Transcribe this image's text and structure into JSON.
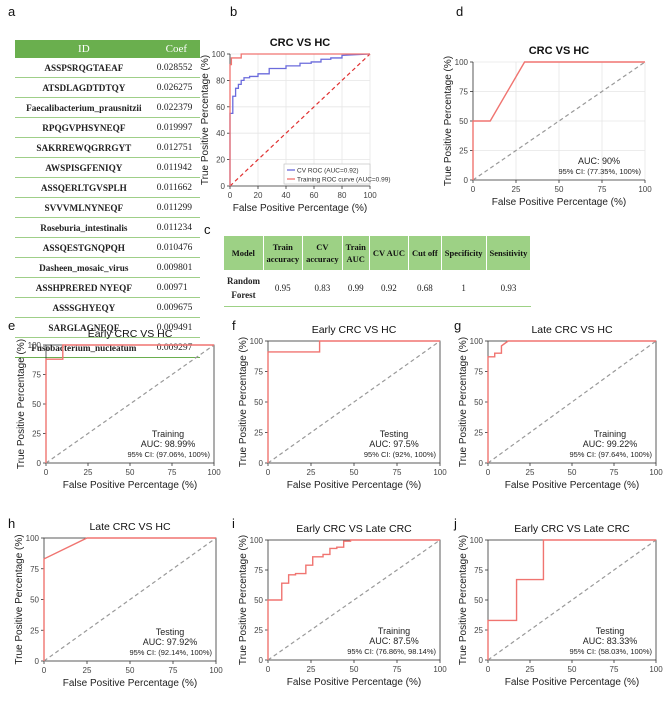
{
  "labels": [
    "a",
    "b",
    "c",
    "d",
    "e",
    "f",
    "g",
    "h",
    "i",
    "j"
  ],
  "table_a": {
    "headers": [
      "ID",
      "Coef"
    ],
    "rows": [
      [
        "ASSPSRQGTAEAF",
        "0.028552"
      ],
      [
        "ATSDLAGDTDTQY",
        "0.026275"
      ],
      [
        "Faecalibacterium_prausnitzii",
        "0.022379"
      ],
      [
        "RPQGVPHSYNEQF",
        "0.019997"
      ],
      [
        "SAKRREWQGRRGYT",
        "0.012751"
      ],
      [
        "AWSPISGFENIQY",
        "0.011942"
      ],
      [
        "ASSQERLTGVSPLH",
        "0.011662"
      ],
      [
        "SVVVMLNYNEQF",
        "0.011299"
      ],
      [
        "Roseburia_intestinalis",
        "0.011234"
      ],
      [
        "ASSQESTGNQPQH",
        "0.010476"
      ],
      [
        "Dasheen_mosaic_virus",
        "0.009801"
      ],
      [
        "ASSHPRERED NYEQF",
        "0.00971"
      ],
      [
        "ASSSGHYEQY",
        "0.009675"
      ],
      [
        "SARGLAGNEQF",
        "0.009491"
      ],
      [
        "Fusobacterium_nucleatum",
        "0.009297"
      ]
    ]
  },
  "table_c": {
    "headers": [
      [
        "Model"
      ],
      [
        "Train",
        "accuracy"
      ],
      [
        "CV",
        "accuracy"
      ],
      [
        "Train",
        "AUC"
      ],
      [
        "CV AUC"
      ],
      [
        "Cut off"
      ],
      [
        "Specificity"
      ],
      [
        "Sensitivity"
      ]
    ],
    "row": {
      "model": [
        "Random",
        "Forest"
      ],
      "values": [
        "0.95",
        "0.83",
        "0.99",
        "0.92",
        "0.68",
        "1",
        "0.93"
      ]
    }
  },
  "axes": {
    "xlabel": "False Positive Percentage (%)",
    "ylabel": "True Positive Percentage (%)",
    "ticks": [
      "0",
      "25",
      "50",
      "75",
      "100"
    ],
    "ticks_b": [
      "0",
      "20",
      "40",
      "60",
      "80",
      "100"
    ]
  },
  "colors": {
    "roc": "#f07470",
    "cv": "#6b6bdc",
    "diag": "#999999",
    "diag_b": "#e03030",
    "table_head_a": "#6aaf4e",
    "table_head_c": "#9dd185"
  },
  "chart_data": [
    {
      "id": "b",
      "type": "line",
      "title": "CRC VS HC",
      "xlim": [
        0,
        100
      ],
      "ylim": [
        0,
        100
      ],
      "grid": true,
      "legend": {
        "position": "bottom-right",
        "entries": [
          "CV ROC (AUC=0.92)",
          "Training ROC curve (AUC=0.99)"
        ]
      },
      "series": [
        {
          "name": "CV ROC (AUC=0.92)",
          "x": [
            0,
            0,
            2,
            2,
            4,
            4,
            6,
            6,
            8,
            8,
            10,
            10,
            14,
            14,
            20,
            20,
            28,
            28,
            40,
            40,
            50,
            50,
            58,
            58,
            65,
            65,
            72,
            72,
            80,
            80,
            100
          ],
          "y": [
            0,
            55,
            55,
            68,
            68,
            74,
            74,
            77,
            77,
            80,
            80,
            82,
            82,
            83,
            83,
            85,
            85,
            89,
            89,
            91,
            91,
            93,
            93,
            94,
            94,
            96,
            96,
            97,
            97,
            99,
            100
          ]
        },
        {
          "name": "Training ROC curve (AUC=0.99)",
          "x": [
            0,
            0,
            1,
            1,
            8,
            8,
            100
          ],
          "y": [
            0,
            92,
            92,
            97,
            97,
            100,
            100
          ]
        }
      ],
      "diagonal": true
    },
    {
      "id": "d",
      "type": "line",
      "title": "CRC VS HC",
      "xlim": [
        0,
        100
      ],
      "ylim": [
        0,
        100
      ],
      "grid": true,
      "x": [
        0,
        0,
        10,
        10,
        30,
        100
      ],
      "y": [
        0,
        50,
        50,
        50,
        100,
        100
      ],
      "annotation": [
        "AUC: 90%",
        "95% CI: (77.35%, 100%)"
      ]
    },
    {
      "id": "e",
      "type": "line",
      "title": "Early CRC VS HC",
      "xlim": [
        0,
        100
      ],
      "ylim": [
        0,
        100
      ],
      "x": [
        0,
        0,
        10,
        10,
        100
      ],
      "y": [
        0,
        88,
        88,
        100,
        100
      ],
      "annotation": [
        "Training",
        "AUC: 98.99%",
        "95% CI: (97.06%, 100%)"
      ]
    },
    {
      "id": "f",
      "type": "line",
      "title": "Early CRC VS HC",
      "xlim": [
        0,
        100
      ],
      "ylim": [
        0,
        100
      ],
      "x": [
        0,
        0,
        30,
        30,
        100
      ],
      "y": [
        0,
        91,
        91,
        100,
        100
      ],
      "annotation": [
        "Testing",
        "AUC: 97.5%",
        "95% CI: (92%, 100%)"
      ]
    },
    {
      "id": "g",
      "type": "line",
      "title": "Late CRC VS HC",
      "xlim": [
        0,
        100
      ],
      "ylim": [
        0,
        100
      ],
      "x": [
        0,
        0,
        4,
        4,
        8,
        8,
        12,
        100
      ],
      "y": [
        0,
        87,
        87,
        90,
        90,
        96,
        100,
        100
      ],
      "annotation": [
        "Training",
        "AUC: 99.22%",
        "95% CI: (97.64%, 100%)"
      ]
    },
    {
      "id": "h",
      "type": "line",
      "title": "Late CRC VS HC",
      "xlim": [
        0,
        100
      ],
      "ylim": [
        0,
        100
      ],
      "x": [
        0,
        0,
        25,
        100
      ],
      "y": [
        0,
        83,
        100,
        100
      ],
      "annotation": [
        "Testing",
        "AUC: 97.92%",
        "95% CI: (92.14%, 100%)"
      ]
    },
    {
      "id": "i",
      "type": "line",
      "title": "Early CRC VS Late CRC",
      "xlim": [
        0,
        100
      ],
      "ylim": [
        0,
        100
      ],
      "x": [
        0,
        0,
        8,
        8,
        12,
        12,
        16,
        16,
        22,
        22,
        26,
        26,
        32,
        32,
        36,
        36,
        40,
        40,
        44,
        44,
        48,
        48,
        70,
        70,
        100
      ],
      "y": [
        0,
        50,
        50,
        64,
        64,
        71,
        71,
        72,
        72,
        79,
        79,
        86,
        86,
        88,
        88,
        93,
        93,
        94,
        94,
        99,
        99,
        100,
        100,
        100,
        100
      ],
      "annotation": [
        "Training",
        "AUC: 87.5%",
        "95% CI: (76.86%, 98.14%)"
      ]
    },
    {
      "id": "j",
      "type": "line",
      "title": "Early CRC VS Late CRC",
      "xlim": [
        0,
        100
      ],
      "ylim": [
        0,
        100
      ],
      "x": [
        0,
        0,
        17,
        17,
        33,
        33,
        100
      ],
      "y": [
        0,
        33,
        33,
        67,
        67,
        100,
        100
      ],
      "annotation": [
        "Testing",
        "AUC: 83.33%",
        "95% CI: (58.03%, 100%)"
      ]
    }
  ]
}
